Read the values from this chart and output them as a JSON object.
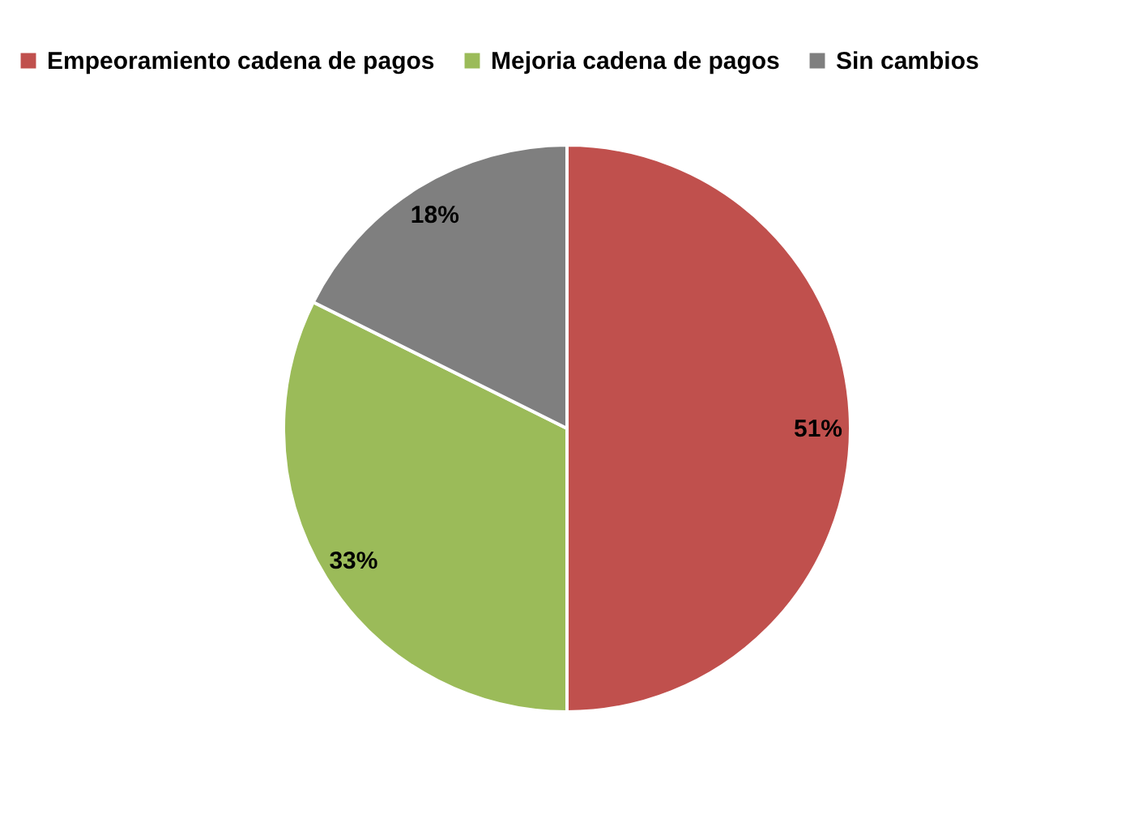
{
  "chart_data": {
    "type": "pie",
    "categories": [
      "Empeoramiento cadena de pagos",
      "Mejoria cadena de pagos",
      "Sin cambios"
    ],
    "values": [
      51,
      33,
      18
    ],
    "colors": [
      "#c0504d",
      "#9bbb59",
      "#7f7f7f"
    ],
    "value_labels": [
      "51%",
      "33%",
      "18%"
    ],
    "legend": "top"
  }
}
